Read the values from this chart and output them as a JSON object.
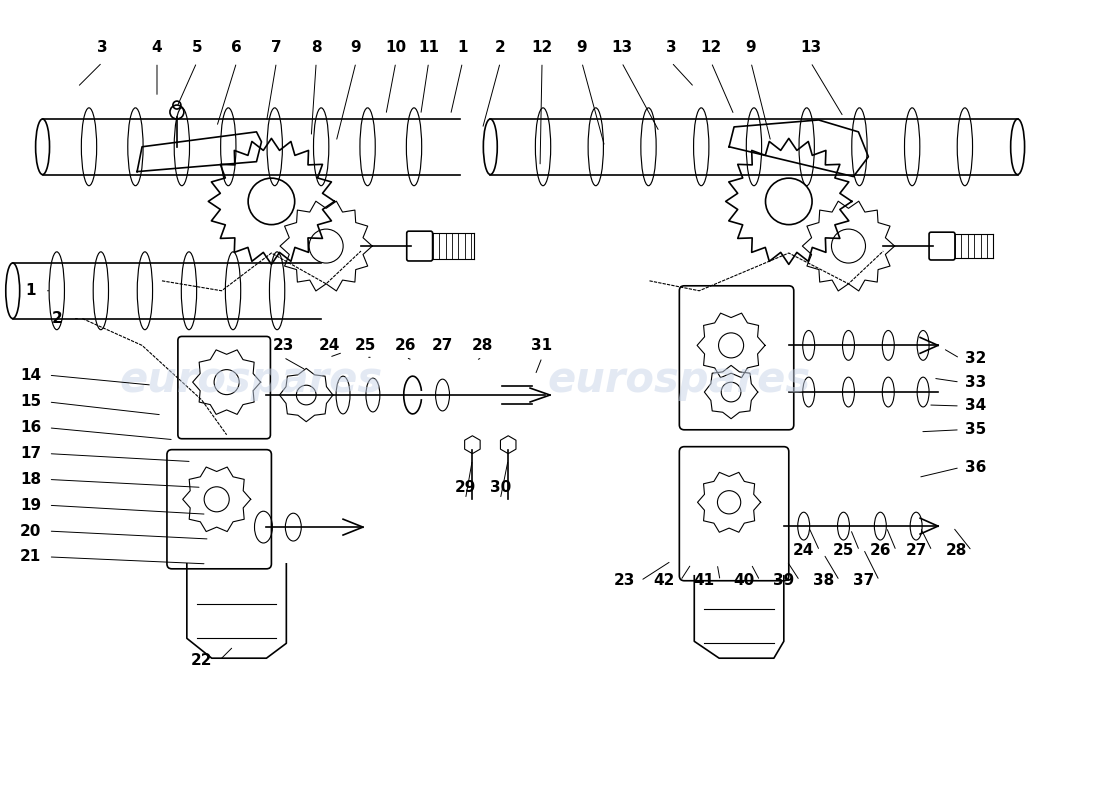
{
  "title": "",
  "background_color": "#ffffff",
  "watermark_text": "eurospares",
  "watermark_color": "#c8d4e8",
  "line_color": "#000000",
  "label_color": "#000000",
  "label_fontsize": 11,
  "label_fontweight": "bold",
  "figsize": [
    11.0,
    8.0
  ],
  "dpi": 100
}
